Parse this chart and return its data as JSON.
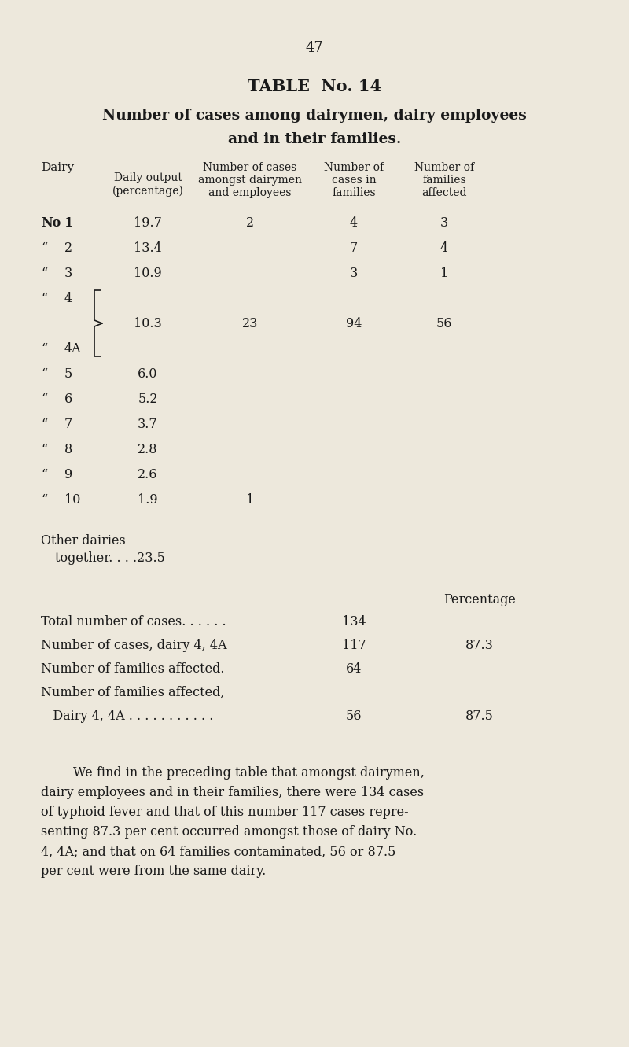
{
  "bg_color": "#ede8dc",
  "text_color": "#1a1a1a",
  "page_number": "47",
  "table_title_line1": "TABLE  No. 14",
  "table_title_line2": "Number of cases among dairymen, dairy employees",
  "table_title_line3": "and in their families.",
  "rows": [
    {
      "dairy_prefix": "No",
      "dairy_num": "1",
      "daily_output": "19.7",
      "num_cases": "2",
      "cases_families": "4",
      "families_affected": "3"
    },
    {
      "dairy_prefix": "“",
      "dairy_num": "2",
      "daily_output": "13.4",
      "num_cases": "",
      "cases_families": "7",
      "families_affected": "4"
    },
    {
      "dairy_prefix": "“",
      "dairy_num": "3",
      "daily_output": "10.9",
      "num_cases": "",
      "cases_families": "3",
      "families_affected": "1"
    },
    {
      "dairy_prefix": "“",
      "dairy_num": "4",
      "daily_output": "",
      "num_cases": "",
      "cases_families": "",
      "families_affected": ""
    },
    {
      "dairy_prefix": "",
      "dairy_num": "",
      "daily_output": "10.3",
      "num_cases": "23",
      "cases_families": "94",
      "families_affected": "56"
    },
    {
      "dairy_prefix": "“",
      "dairy_num": "4A",
      "daily_output": "",
      "num_cases": "",
      "cases_families": "",
      "families_affected": ""
    },
    {
      "dairy_prefix": "“",
      "dairy_num": "5",
      "daily_output": "6.0",
      "num_cases": "",
      "cases_families": "",
      "families_affected": ""
    },
    {
      "dairy_prefix": "“",
      "dairy_num": "6",
      "daily_output": "5.2",
      "num_cases": "",
      "cases_families": "",
      "families_affected": ""
    },
    {
      "dairy_prefix": "“",
      "dairy_num": "7",
      "daily_output": "3.7",
      "num_cases": "",
      "cases_families": "",
      "families_affected": ""
    },
    {
      "dairy_prefix": "“",
      "dairy_num": "8",
      "daily_output": "2.8",
      "num_cases": "",
      "cases_families": "",
      "families_affected": ""
    },
    {
      "dairy_prefix": "“",
      "dairy_num": "9",
      "daily_output": "2.6",
      "num_cases": "",
      "cases_families": "",
      "families_affected": ""
    },
    {
      "dairy_prefix": "“",
      "dairy_num": "10",
      "daily_output": "1.9",
      "num_cases": "1",
      "cases_families": "",
      "families_affected": ""
    }
  ],
  "summary_rows": [
    {
      "label": "Total number of cases. . . . . .",
      "value": "134",
      "percentage": ""
    },
    {
      "label": "Number of cases, dairy 4, 4A",
      "value": "117",
      "percentage": "87.3"
    },
    {
      "label": "Number of families affected.",
      "value": "64",
      "percentage": ""
    },
    {
      "label": "Number of families affected,",
      "value": "",
      "percentage": ""
    },
    {
      "label": "   Dairy 4, 4A . . . . . . . . . . .",
      "value": "56",
      "percentage": "87.5"
    }
  ],
  "paragraph_lines": [
    "        We find in the preceding table that amongst dairymen,",
    "dairy employees and in their families, there were 134 cases",
    "of typhoid fever and that of this number 117 cases repre-",
    "senting 87.3 per cent occurred amongst those of dairy No.",
    "4, 4A; and that on 64 families contaminated, 56 or 87.5",
    "per cent were from the same dairy."
  ]
}
